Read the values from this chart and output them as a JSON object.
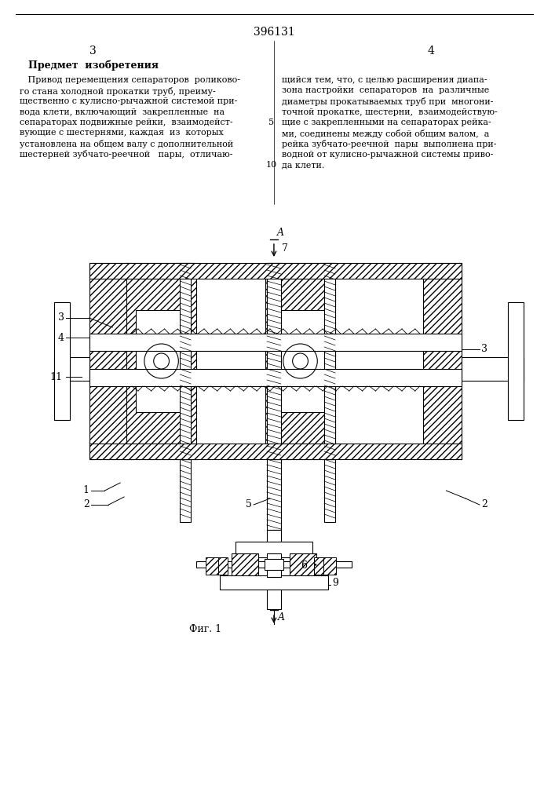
{
  "page_number_center": "396131",
  "col_left_number": "3",
  "col_right_number": "4",
  "section_title": "Предмет  изобретения",
  "line_number_5": "5",
  "line_number_10": "10",
  "fig_label": "Фиг. 1",
  "arrow_label_A_top": "A",
  "arrow_label_7": "7",
  "arrow_label_A_bot": "A",
  "label_1": "1",
  "label_2a": "2",
  "label_2b": "2",
  "label_3a": "3",
  "label_3b": "3",
  "label_4": "4",
  "label_5": "5",
  "label_6": "6",
  "label_9": "9",
  "label_11": "11",
  "bg_color": "#ffffff",
  "line_color": "#000000",
  "text_color": "#000000"
}
